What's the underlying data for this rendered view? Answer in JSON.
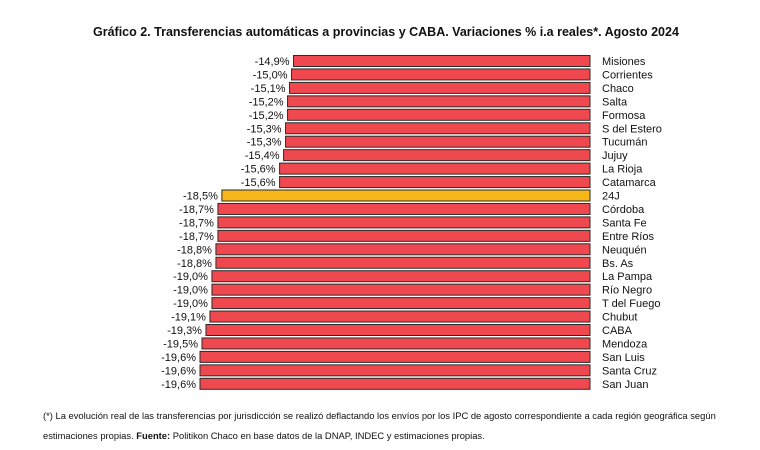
{
  "chart_data": {
    "type": "bar",
    "orientation": "horizontal",
    "title": "Gráfico 2. Transferencias automáticas a provincias y CABA. Variaciones % i.a reales*. Agosto 2024",
    "categories": [
      "Misiones",
      "Corrientes",
      "Chaco",
      "Salta",
      "Formosa",
      "S del Estero",
      "Tucumán",
      "Jujuy",
      "La Rioja",
      "Catamarca",
      "24J",
      "Córdoba",
      "Santa Fe",
      "Entre Ríos",
      "Neuquén",
      "Bs. As",
      "La Pampa",
      "Río Negro",
      "T del Fuego",
      "Chubut",
      "CABA",
      "Mendoza",
      "San Luis",
      "Santa Cruz",
      "San Juan"
    ],
    "values": [
      -14.9,
      -15.0,
      -15.1,
      -15.2,
      -15.2,
      -15.3,
      -15.3,
      -15.4,
      -15.6,
      -15.6,
      -18.5,
      -18.7,
      -18.7,
      -18.7,
      -18.8,
      -18.8,
      -19.0,
      -19.0,
      -19.0,
      -19.1,
      -19.3,
      -19.5,
      -19.6,
      -19.6,
      -19.6
    ],
    "value_labels": [
      "-14,9%",
      "-15,0%",
      "-15,1%",
      "-15,2%",
      "-15,2%",
      "-15,3%",
      "-15,3%",
      "-15,4%",
      "-15,6%",
      "-15,6%",
      "-18,5%",
      "-18,7%",
      "-18,7%",
      "-18,7%",
      "-18,8%",
      "-18,8%",
      "-19,0%",
      "-19,0%",
      "-19,0%",
      "-19,1%",
      "-19,3%",
      "-19,5%",
      "-19,6%",
      "-19,6%",
      "-19,6%"
    ],
    "highlight_category": "24J",
    "colors": {
      "bar": "#f0484f",
      "highlight": "#f7b718",
      "edge": "#2b2b2b"
    },
    "xlim": [
      -19.6,
      0
    ],
    "grid": false,
    "legend": "none"
  },
  "footnote": {
    "text": "(*) La evolución real de las transferencias por jurisdicción se realizó deflactando los envíos por los IPC de agosto correspondiente a cada región geográfica según estimaciones propias. ",
    "source_label": "Fuente:",
    "source_text": " Politikon Chaco en base datos de la DNAP, INDEC y estimaciones propias."
  }
}
